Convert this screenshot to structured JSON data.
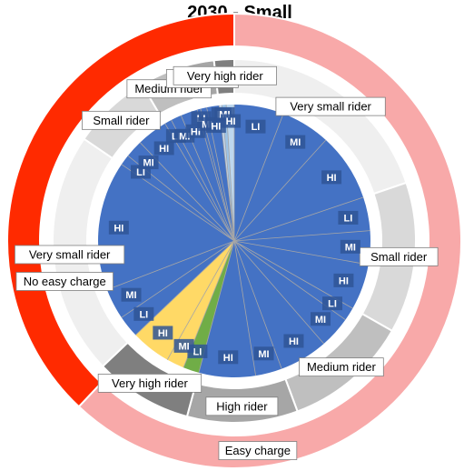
{
  "chart_data": {
    "type": "pie",
    "title": "2030 - Small",
    "rings": {
      "outer": {
        "segments": [
          {
            "label": "Easy charge",
            "value": 62,
            "color": "#f8a9a9"
          },
          {
            "label": "No easy charge",
            "value": 38,
            "color": "#ff2a00"
          }
        ]
      },
      "middle": {
        "segments": [
          {
            "label": "Very small rider",
            "value": 18.9,
            "color": "#efefef"
          },
          {
            "label": "Small rider",
            "value": 12.8,
            "color": "#d9d9d9"
          },
          {
            "label": "Medium rider",
            "value": 10.6,
            "color": "#bfbfbf"
          },
          {
            "label": "High rider",
            "value": 9.4,
            "color": "#a6a6a6"
          },
          {
            "label": "Very high rider",
            "value": 8.3,
            "color": "#7f7f7f"
          },
          {
            "label": "Very small rider",
            "value": 20.6,
            "color": "#efefef"
          },
          {
            "label": "Small rider",
            "value": 6.7,
            "color": "#d9d9d9"
          },
          {
            "label": "Medium rider",
            "value": 3.9,
            "color": "#bfbfbf"
          },
          {
            "label": "High rider",
            "value": 2.5,
            "color": "#a6a6a6"
          },
          {
            "label": "Very high rider",
            "value": 1.7,
            "color": "#7f7f7f"
          }
        ]
      },
      "inner": {
        "segments": [
          {
            "label": "LI",
            "value": 5.6,
            "color": "#4472c4"
          },
          {
            "label": "MI",
            "value": 5.6,
            "color": "#4472c4"
          },
          {
            "label": "HI",
            "value": 7.7,
            "color": "#4472c4"
          },
          {
            "label": "LI",
            "value": 3.8,
            "color": "#4472c4"
          },
          {
            "label": "MI",
            "value": 3.8,
            "color": "#4472c4"
          },
          {
            "label": "HI",
            "value": 5.2,
            "color": "#4472c4"
          },
          {
            "label": "LI",
            "value": 1.5,
            "color": "#4472c4"
          },
          {
            "label": "MI",
            "value": 3.6,
            "color": "#4472c4"
          },
          {
            "label": "HI",
            "value": 5.5,
            "color": "#4472c4"
          },
          {
            "label": "MI",
            "value": 3.0,
            "color": "#4472c4"
          },
          {
            "label": "HI",
            "value": 6.4,
            "color": "#4472c4"
          },
          {
            "label": "LI",
            "value": 1.8,
            "color": "#70ad47"
          },
          {
            "label": "MI",
            "value": 2.0,
            "color": "#ffd966"
          },
          {
            "label": "HI",
            "value": 4.5,
            "color": "#ffd966"
          },
          {
            "label": "LI",
            "value": 2.5,
            "color": "#4472c4"
          },
          {
            "label": "MI",
            "value": 3.5,
            "color": "#4472c4"
          },
          {
            "label": "HI",
            "value": 14.6,
            "color": "#4472c4"
          },
          {
            "label": "LI",
            "value": 1.2,
            "color": "#4472c4"
          },
          {
            "label": "MI",
            "value": 2.0,
            "color": "#4472c4"
          },
          {
            "label": "HI",
            "value": 3.5,
            "color": "#4472c4"
          },
          {
            "label": "LI",
            "value": 0.8,
            "color": "#4472c4"
          },
          {
            "label": "MI",
            "value": 1.2,
            "color": "#4472c4"
          },
          {
            "label": "HI",
            "value": 1.9,
            "color": "#4472c4"
          },
          {
            "label": "LI",
            "value": 0.4,
            "color": "#4472c4"
          },
          {
            "label": "MI",
            "value": 0.7,
            "color": "#4472c4"
          },
          {
            "label": "HI",
            "value": 1.4,
            "color": "#4472c4"
          },
          {
            "label": "LI",
            "value": 0.3,
            "color": "#c5d9f1"
          },
          {
            "label": "MI",
            "value": 0.5,
            "color": "#9dc3e6"
          },
          {
            "label": "HI",
            "value": 0.9,
            "color": "#bdd7ee"
          }
        ]
      }
    }
  }
}
